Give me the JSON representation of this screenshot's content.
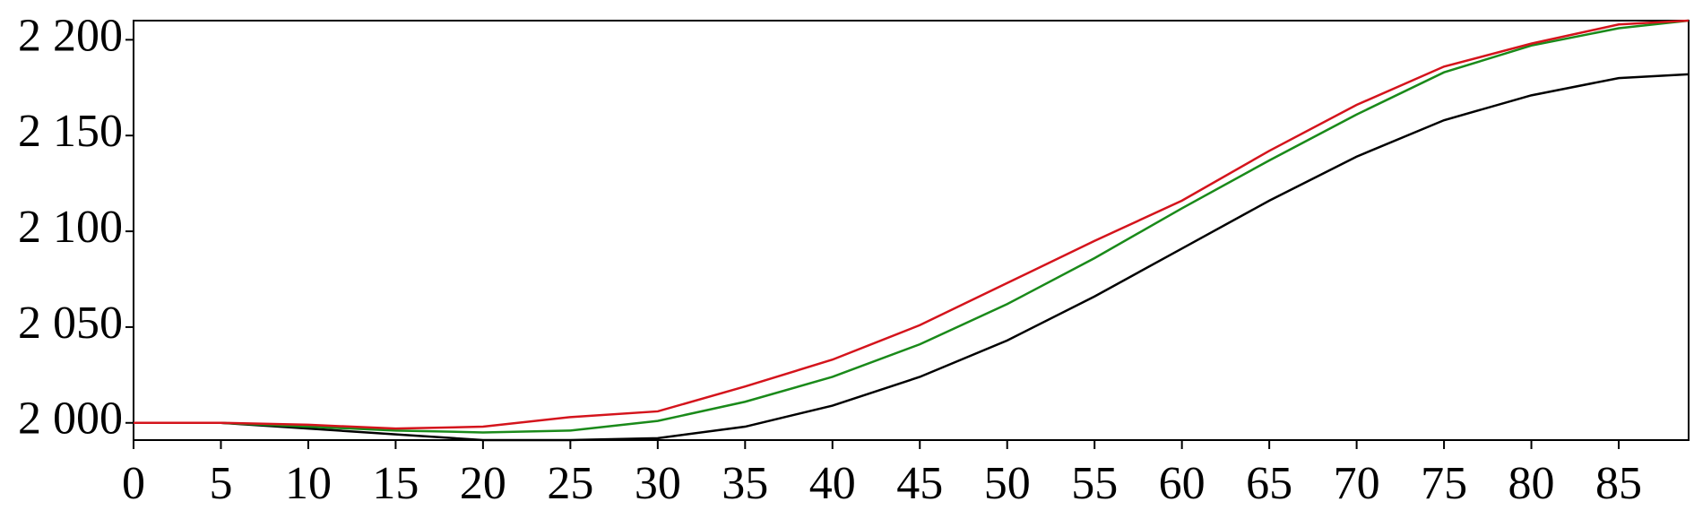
{
  "chart_data": {
    "type": "line",
    "x": [
      0,
      5,
      10,
      15,
      20,
      25,
      30,
      35,
      40,
      45,
      50,
      55,
      60,
      65,
      70,
      75,
      80,
      85,
      89
    ],
    "series": [
      {
        "color": "#000000",
        "values": [
          2000,
          2000,
          1997,
          1994,
          1991,
          1991,
          1992,
          1998,
          2009,
          2024,
          2043,
          2066,
          2091,
          2116,
          2139,
          2158,
          2171,
          2180,
          2182
        ]
      },
      {
        "color": "#1a8a1a",
        "values": [
          2000,
          2000,
          1998,
          1996,
          1995,
          1996,
          2001,
          2011,
          2024,
          2041,
          2062,
          2086,
          2112,
          2137,
          2161,
          2183,
          2197,
          2206,
          2210
        ]
      },
      {
        "color": "#d4141c",
        "values": [
          2000,
          2000,
          1999,
          1997,
          1998,
          2003,
          2006,
          2019,
          2033,
          2051,
          2073,
          2095,
          2116,
          2142,
          2166,
          2186,
          2198,
          2208,
          2210
        ]
      }
    ],
    "xlim": [
      0,
      89
    ],
    "ylim": [
      1991,
      2210
    ],
    "xticks": [
      0,
      5,
      10,
      15,
      20,
      25,
      30,
      35,
      40,
      45,
      50,
      55,
      60,
      65,
      70,
      75,
      80,
      85
    ],
    "yticks": [
      {
        "value": 2000,
        "label": "2 000"
      },
      {
        "value": 2050,
        "label": "2 050"
      },
      {
        "value": 2100,
        "label": "2 100"
      },
      {
        "value": 2150,
        "label": "2 150"
      },
      {
        "value": 2200,
        "label": "2 200"
      }
    ]
  }
}
